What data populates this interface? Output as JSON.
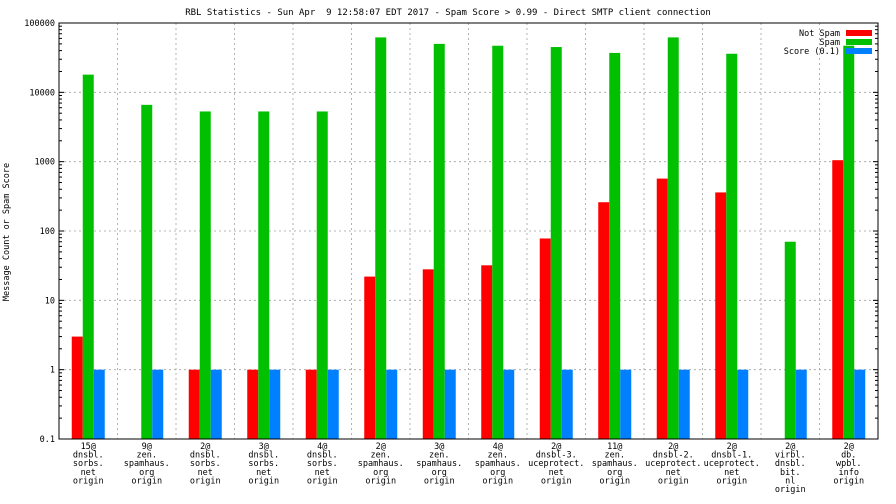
{
  "chart_data": {
    "type": "bar",
    "title": "RBL Statistics - Sun Apr  9 12:58:07 EDT 2017 - Spam Score > 0.99 - Direct SMTP client connection",
    "ylabel": "Message Count or Spam Score",
    "xlabel": "",
    "yscale": "log",
    "ylim": [
      0.1,
      100000
    ],
    "yticks": [
      "0.1",
      "1",
      "10",
      "100",
      "1000",
      "10000",
      "100000"
    ],
    "ytick_values": [
      0.1,
      1,
      10,
      100,
      1000,
      10000,
      100000
    ],
    "grid": true,
    "legend_position": "top-right",
    "categories": [
      [
        "15@",
        "dnsbl.",
        "sorbs.",
        "net",
        "origin"
      ],
      [
        "9@",
        "zen.",
        "spamhaus.",
        "org",
        "origin"
      ],
      [
        "2@",
        "dnsbl.",
        "sorbs.",
        "net",
        "origin"
      ],
      [
        "3@",
        "dnsbl.",
        "sorbs.",
        "net",
        "origin"
      ],
      [
        "4@",
        "dnsbl.",
        "sorbs.",
        "net",
        "origin"
      ],
      [
        "2@",
        "zen.",
        "spamhaus.",
        "org",
        "origin"
      ],
      [
        "3@",
        "zen.",
        "spamhaus.",
        "org",
        "origin"
      ],
      [
        "4@",
        "zen.",
        "spamhaus.",
        "org",
        "origin"
      ],
      [
        "2@",
        "dnsbl-3.",
        "uceprotect.",
        "net",
        "origin"
      ],
      [
        "11@",
        "zen.",
        "spamhaus.",
        "org",
        "origin"
      ],
      [
        "2@",
        "dnsbl-2.",
        "uceprotect.",
        "net",
        "origin"
      ],
      [
        "2@",
        "dnsbl-1.",
        "uceprotect.",
        "net",
        "origin"
      ],
      [
        "2@",
        "virbl.",
        "dnsbl.",
        "bit.",
        "nl",
        "origin"
      ],
      [
        "2@",
        "db.",
        "wpbl.",
        "info",
        "origin"
      ]
    ],
    "series": [
      {
        "name": "Not Spam",
        "color": "#ff0000",
        "values": [
          3,
          null,
          1,
          1,
          1,
          22,
          28,
          32,
          78,
          260,
          570,
          360,
          null,
          1050
        ]
      },
      {
        "name": "Spam",
        "color": "#00c000",
        "values": [
          18000,
          6600,
          5300,
          5300,
          5300,
          62000,
          50000,
          47000,
          45000,
          37000,
          62000,
          36000,
          70,
          47000
        ]
      },
      {
        "name": "Score (0.1)",
        "color": "#0080ff",
        "values": [
          1,
          1,
          1,
          1,
          1,
          1,
          1,
          1,
          1,
          1,
          1,
          1,
          1,
          1
        ]
      }
    ]
  }
}
